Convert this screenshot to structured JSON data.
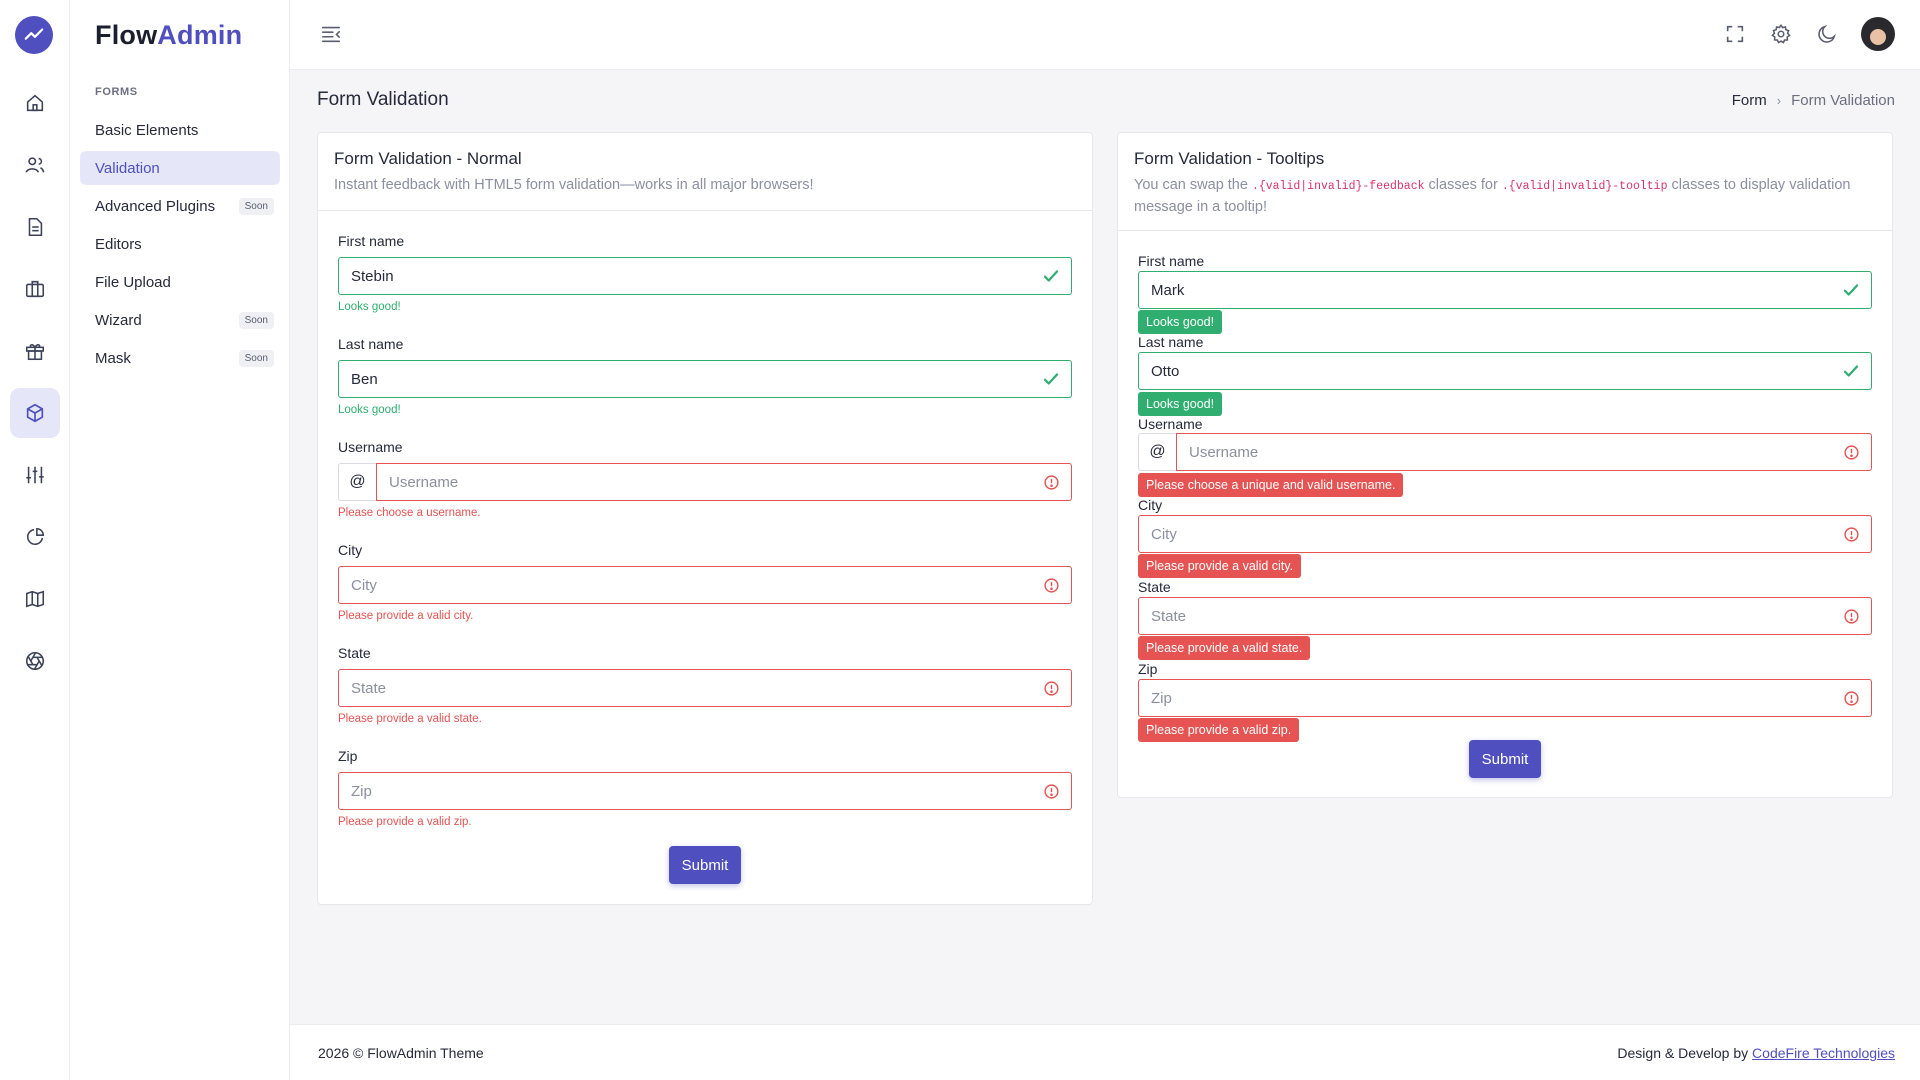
{
  "app": {
    "brand_part1": "Flow",
    "brand_part2": "Admin"
  },
  "rail": {
    "icons": [
      "chart-logo-icon",
      "home-icon",
      "users-icon",
      "document-icon",
      "briefcase-icon",
      "gift-icon",
      "box-icon",
      "sliders-icon",
      "pie-chart-icon",
      "map-icon",
      "aperture-icon"
    ],
    "active": "box-icon"
  },
  "subnav": {
    "section_title": "FORMS",
    "items": [
      {
        "label": "Basic Elements",
        "badge": ""
      },
      {
        "label": "Validation",
        "badge": "",
        "active": true
      },
      {
        "label": "Advanced Plugins",
        "badge": "Soon"
      },
      {
        "label": "Editors",
        "badge": ""
      },
      {
        "label": "File Upload",
        "badge": ""
      },
      {
        "label": "Wizard",
        "badge": "Soon"
      },
      {
        "label": "Mask",
        "badge": "Soon"
      }
    ]
  },
  "page": {
    "title": "Form Validation",
    "breadcrumb": {
      "parent": "Form",
      "separator": "›",
      "current": "Form Validation"
    }
  },
  "card_normal": {
    "title": "Form Validation - Normal",
    "subtitle": "Instant feedback with HTML5 form validation—works in all major browsers!",
    "fields": {
      "first_name": {
        "label": "First name",
        "value": "Stebin",
        "feedback": "Looks good!"
      },
      "last_name": {
        "label": "Last name",
        "value": "Ben",
        "feedback": "Looks good!"
      },
      "username": {
        "label": "Username",
        "prefix": "@",
        "placeholder": "Username",
        "feedback": "Please choose a username."
      },
      "city": {
        "label": "City",
        "placeholder": "City",
        "feedback": "Please provide a valid city."
      },
      "state": {
        "label": "State",
        "placeholder": "State",
        "feedback": "Please provide a valid state."
      },
      "zip": {
        "label": "Zip",
        "placeholder": "Zip",
        "feedback": "Please provide a valid zip."
      }
    },
    "submit": "Submit"
  },
  "card_tooltip": {
    "title": "Form Validation - Tooltips",
    "subtitle_pre": "You can swap the ",
    "code1": ".{valid|invalid}-feedback",
    "subtitle_mid": " classes for ",
    "code2": ".{valid|invalid}-tooltip",
    "subtitle_post": " classes to display validation message in a tooltip!",
    "fields": {
      "first_name": {
        "label": "First name",
        "value": "Mark",
        "tooltip": "Looks good!"
      },
      "last_name": {
        "label": "Last name",
        "value": "Otto",
        "tooltip": "Looks good!"
      },
      "username": {
        "label": "Username",
        "prefix": "@",
        "placeholder": "Username",
        "tooltip": "Please choose a unique and valid username."
      },
      "city": {
        "label": "City",
        "placeholder": "City",
        "tooltip": "Please provide a valid city."
      },
      "state": {
        "label": "State",
        "placeholder": "State",
        "tooltip": "Please provide a valid state."
      },
      "zip": {
        "label": "Zip",
        "placeholder": "Zip",
        "tooltip": "Please provide a valid zip."
      }
    },
    "submit": "Submit"
  },
  "footer": {
    "left": "2026 © FlowAdmin Theme",
    "right_text": "Design & Develop by ",
    "right_link": "CodeFire Technologies"
  },
  "colors": {
    "accent": "#4f4fc0",
    "valid": "#2fae6f",
    "invalid": "#e55353"
  }
}
